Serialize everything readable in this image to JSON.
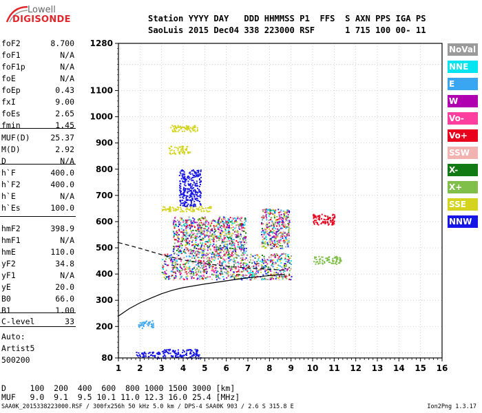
{
  "logo": {
    "line1": "Lowell",
    "line2": "DIGISONDE"
  },
  "header": {
    "line1": "Station YYYY DAY   DDD HHMMSS P1  FFS  S AXN PPS IGA PS",
    "line2": "SaoLuis 2015 Dec04 338 223000 RSF      1 715 100 00- 11"
  },
  "params": [
    {
      "label": "foF2",
      "value": "8.700"
    },
    {
      "label": "foF1",
      "value": "N/A"
    },
    {
      "label": "foF1p",
      "value": "N/A"
    },
    {
      "label": "foE",
      "value": "N/A"
    },
    {
      "label": "foEp",
      "value": "0.43"
    },
    {
      "label": "fxI",
      "value": "9.00"
    },
    {
      "label": "foEs",
      "value": "2.65"
    },
    {
      "label": "fmin",
      "value": "1.45"
    },
    {
      "label": "MUF(D)",
      "value": "25.37"
    },
    {
      "label": "M(D)",
      "value": "2.92"
    },
    {
      "label": "D",
      "value": "N/A"
    },
    {
      "label": "h`F",
      "value": "400.0"
    },
    {
      "label": "h`F2",
      "value": "400.0"
    },
    {
      "label": "h`E",
      "value": "N/A"
    },
    {
      "label": "h`Es",
      "value": "100.0"
    },
    {
      "label": "hmF2",
      "value": "398.9"
    },
    {
      "label": "hmF1",
      "value": "N/A"
    },
    {
      "label": "hmE",
      "value": "110.0"
    },
    {
      "label": "yF2",
      "value": "34.8"
    },
    {
      "label": "yF1",
      "value": "N/A"
    },
    {
      "label": "yE",
      "value": "20.0"
    },
    {
      "label": "B0",
      "value": "66.0"
    },
    {
      "label": "B1",
      "value": "1.00"
    },
    {
      "label": "C-level",
      "value": "33"
    },
    {
      "label": "Auto:",
      "value": ""
    },
    {
      "label": "Artist5",
      "value": ""
    },
    {
      "label": "500200",
      "value": ""
    }
  ],
  "footer": {
    "line1": "D     100  200  400  600  800 1000 1500 3000 [km]",
    "line2": "MUF   9.0  9.1  9.5 10.1 11.0 12.3 16.0 25.4 [MHz]"
  },
  "fileline": "SAA0K_2015338223000.RSF / 300fx256h 50 kHz 5.0 km / DPS-4 SAA0K 903 / 2.6 S 315.8 E",
  "version": "Ion2Png 1.3.17",
  "legend": [
    {
      "label": "NoVal",
      "color": "#9a9a9a"
    },
    {
      "label": "NNE",
      "color": "#00e5f0"
    },
    {
      "label": "E",
      "color": "#3aa6f2"
    },
    {
      "label": "W",
      "color": "#b000b0"
    },
    {
      "label": "Vo-",
      "color": "#ff3fa0"
    },
    {
      "label": "Vo+",
      "color": "#e8001c"
    },
    {
      "label": "SSW",
      "color": "#f2b2b0"
    },
    {
      "label": "X-",
      "color": "#127a12"
    },
    {
      "label": "X+",
      "color": "#7fbf4a"
    },
    {
      "label": "SSE",
      "color": "#d4d41e"
    },
    {
      "label": "NNW",
      "color": "#1616e6"
    }
  ],
  "chart_data": {
    "type": "scatter",
    "xlim": [
      1,
      16
    ],
    "ylim": [
      80,
      1280
    ],
    "x_ticks": [
      "1",
      "2",
      "3",
      "4",
      "5",
      "6",
      "7",
      "8",
      "9",
      "10",
      "11",
      "12",
      "13",
      "14",
      "15",
      "16"
    ],
    "y_ticks": [
      80,
      200,
      300,
      400,
      500,
      600,
      700,
      800,
      900,
      1000,
      1100,
      1280
    ],
    "grid": true,
    "legend_position": "right",
    "profile_curve": [
      [
        1,
        240
      ],
      [
        1.5,
        268
      ],
      [
        2,
        290
      ],
      [
        2.5,
        308
      ],
      [
        3,
        325
      ],
      [
        3.5,
        338
      ],
      [
        4,
        348
      ],
      [
        5,
        362
      ],
      [
        6,
        374
      ],
      [
        7,
        386
      ],
      [
        8,
        394
      ],
      [
        8.7,
        398.9
      ]
    ],
    "profile_upper": [
      [
        1,
        520
      ],
      [
        2,
        498
      ],
      [
        3,
        474
      ],
      [
        4,
        454
      ],
      [
        5,
        440
      ],
      [
        6,
        430
      ],
      [
        7,
        423
      ],
      [
        8,
        418
      ],
      [
        8.7,
        415
      ]
    ],
    "clusters": [
      {
        "x": [
          1.8,
          2.9
        ],
        "y": [
          80,
          105
        ],
        "series": "NNW"
      },
      {
        "x": [
          3.0,
          4.8
        ],
        "y": [
          80,
          115
        ],
        "series": "NNW"
      },
      {
        "x": [
          1.9,
          2.6
        ],
        "y": [
          195,
          225
        ],
        "series": "E"
      },
      {
        "x": [
          3.0,
          9.0
        ],
        "y": [
          380,
          480
        ],
        "series": "mixed"
      },
      {
        "x": [
          3.5,
          6.9
        ],
        "y": [
          480,
          620
        ],
        "series": "mixed"
      },
      {
        "x": [
          7.6,
          8.9
        ],
        "y": [
          500,
          650
        ],
        "series": "mixed"
      },
      {
        "x": [
          3.4,
          4.7
        ],
        "y": [
          945,
          970
        ],
        "series": "SSE"
      },
      {
        "x": [
          3.0,
          5.3
        ],
        "y": [
          640,
          660
        ],
        "series": "SSE"
      },
      {
        "x": [
          3.3,
          4.3
        ],
        "y": [
          860,
          890
        ],
        "series": "SSE"
      },
      {
        "x": [
          10.0,
          11.3
        ],
        "y": [
          440,
          470
        ],
        "series": "X+"
      },
      {
        "x": [
          10.0,
          11.0
        ],
        "y": [
          590,
          630
        ],
        "series": "Vo+"
      },
      {
        "x": [
          3.8,
          4.8
        ],
        "y": [
          660,
          800
        ],
        "series": "NNW"
      }
    ]
  }
}
